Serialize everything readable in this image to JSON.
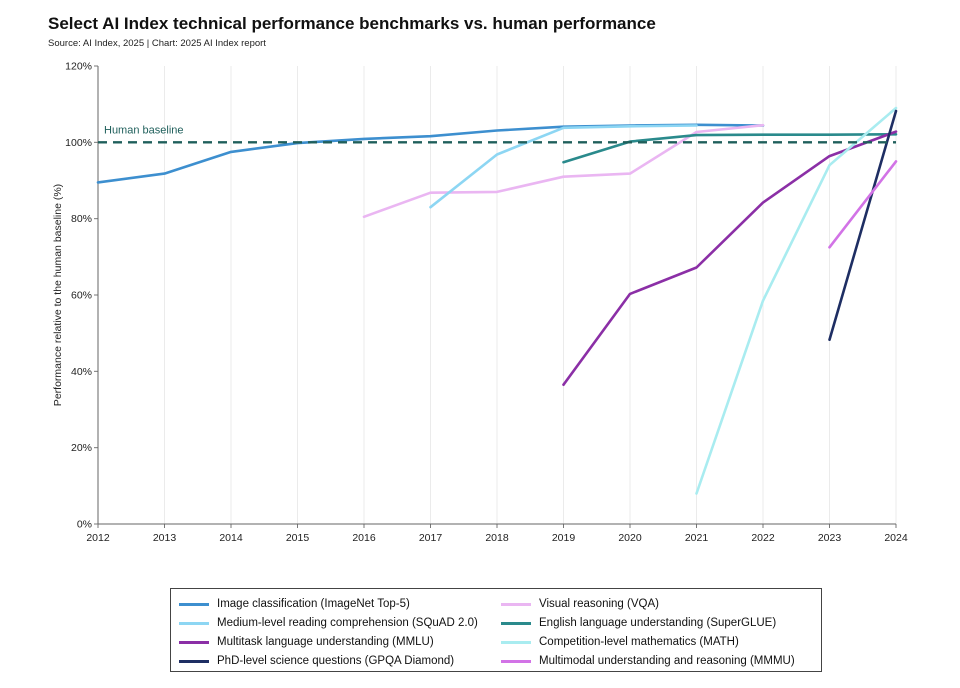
{
  "header": {
    "title": "Select AI Index technical performance benchmarks vs. human performance",
    "subtitle": "Source: AI Index, 2025 | Chart: 2025 AI Index report"
  },
  "chart_data": {
    "type": "line",
    "title": "Select AI Index technical performance benchmarks vs. human performance",
    "subtitle": "Source: AI Index, 2025 | Chart: 2025 AI Index report",
    "xlabel": "",
    "ylabel": "Performance relative to the human baseline (%)",
    "xlim": [
      2012,
      2024
    ],
    "ylim": [
      0,
      120
    ],
    "x_ticks": [
      "2012",
      "2013",
      "2014",
      "2015",
      "2016",
      "2017",
      "2018",
      "2019",
      "2020",
      "2021",
      "2022",
      "2023",
      "2024"
    ],
    "y_ticks": [
      {
        "value": 0,
        "label": "0%"
      },
      {
        "value": 20,
        "label": "20%"
      },
      {
        "value": 40,
        "label": "40%"
      },
      {
        "value": 60,
        "label": "60%"
      },
      {
        "value": 80,
        "label": "80%"
      },
      {
        "value": 100,
        "label": "100%"
      },
      {
        "value": 120,
        "label": "120%"
      }
    ],
    "grid": {
      "vertical": true,
      "horizontal": false
    },
    "legend_position": "bottom",
    "reference_line": {
      "value": 100,
      "label": "Human baseline",
      "color": "#1f5f5b",
      "style": "dashed"
    },
    "series": [
      {
        "name": "Image classification (ImageNet Top-5)",
        "color": "#3d8fcf",
        "x": [
          2012,
          2013,
          2014,
          2015,
          2016,
          2017,
          2018,
          2019,
          2020,
          2021,
          2022
        ],
        "y": [
          89.5,
          91.8,
          97.5,
          99.8,
          100.9,
          101.6,
          103.1,
          104.1,
          104.4,
          104.6,
          104.4
        ]
      },
      {
        "name": "Visual reasoning (VQA)",
        "color": "#eab6f2",
        "x": [
          2016,
          2017,
          2018,
          2019,
          2020,
          2021,
          2022
        ],
        "y": [
          80.5,
          86.8,
          87.0,
          91.0,
          91.8,
          102.7,
          104.5
        ]
      },
      {
        "name": "Medium-level reading comprehension (SQuAD 2.0)",
        "color": "#8dd6f3",
        "x": [
          2017,
          2018,
          2019,
          2020,
          2021
        ],
        "y": [
          83.0,
          96.8,
          103.8,
          104.2,
          104.4
        ]
      },
      {
        "name": "English language understanding (SuperGLUE)",
        "color": "#2a8a8c",
        "x": [
          2019,
          2020,
          2021,
          2022,
          2023,
          2024
        ],
        "y": [
          94.8,
          100.2,
          101.9,
          102.0,
          102.0,
          102.1
        ]
      },
      {
        "name": "Multitask language understanding (MMLU)",
        "color": "#8b2fa6",
        "x": [
          2019,
          2020,
          2021,
          2022,
          2023,
          2024
        ],
        "y": [
          36.5,
          60.3,
          67.2,
          84.2,
          96.4,
          102.8
        ]
      },
      {
        "name": "Competition-level mathematics (MATH)",
        "color": "#a9ecf0",
        "x": [
          2021,
          2022,
          2023,
          2024
        ],
        "y": [
          8.0,
          58.5,
          94.0,
          109.0
        ]
      },
      {
        "name": "PhD-level science questions (GPQA Diamond)",
        "color": "#1e2e63",
        "x": [
          2023,
          2024
        ],
        "y": [
          48.3,
          108.2
        ]
      },
      {
        "name": "Multimodal understanding and reasoning (MMMU)",
        "color": "#d273e6",
        "x": [
          2023,
          2024
        ],
        "y": [
          72.5,
          95.0
        ]
      }
    ]
  },
  "legend": {
    "items": [
      {
        "label": "Image classification (ImageNet Top-5)",
        "color": "#3d8fcf"
      },
      {
        "label": "Visual reasoning (VQA)",
        "color": "#eab6f2"
      },
      {
        "label": "Medium-level reading comprehension (SQuAD 2.0)",
        "color": "#8dd6f3"
      },
      {
        "label": "English language understanding (SuperGLUE)",
        "color": "#2a8a8c"
      },
      {
        "label": "Multitask language understanding (MMLU)",
        "color": "#8b2fa6"
      },
      {
        "label": "Competition-level mathematics (MATH)",
        "color": "#a9ecf0"
      },
      {
        "label": "PhD-level science questions (GPQA Diamond)",
        "color": "#1e2e63"
      },
      {
        "label": "Multimodal understanding and reasoning (MMMU)",
        "color": "#d273e6"
      }
    ]
  }
}
